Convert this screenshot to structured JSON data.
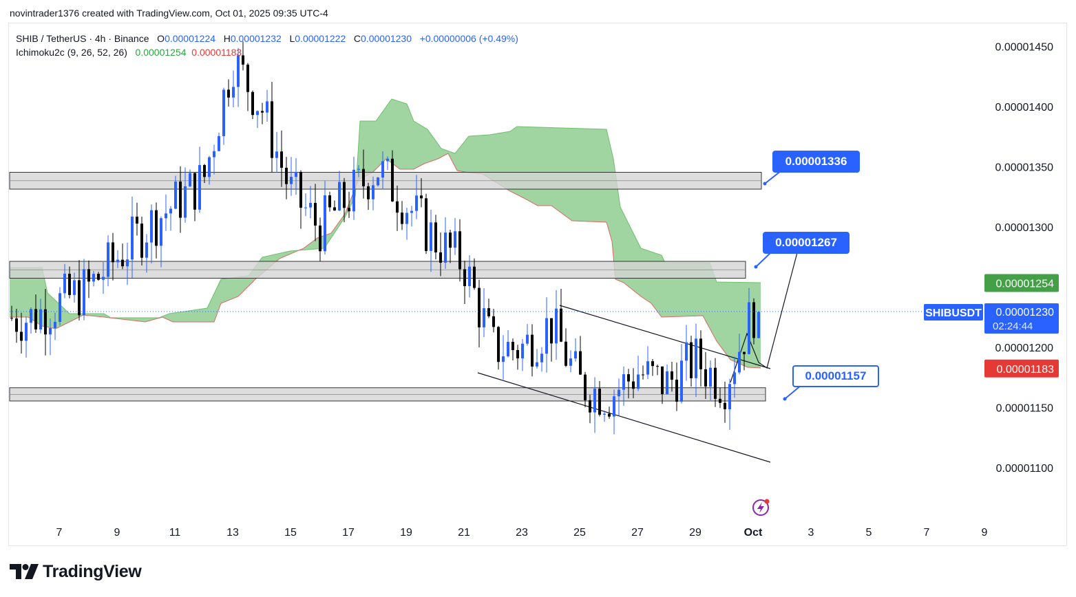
{
  "header": {
    "credit": "novintrader1376 created with TradingView.com, Oct 01, 2025 09:35 UTC-4"
  },
  "legend": {
    "symbol": "SHIB / TetherUS · 4h · Binance",
    "o_label": "O",
    "o_value": "0.00001224",
    "h_label": "H",
    "h_value": "0.00001232",
    "l_label": "L",
    "l_value": "0.00001222",
    "c_label": "C",
    "c_value": "0.00001230",
    "change": "+0.00000006 (+0.49%)",
    "indicator_name": "Ichimoku2c (9, 26, 52, 26)",
    "indicator_value_1": "0.00001254",
    "indicator_value_2": "0.00001183"
  },
  "price_axis": {
    "ticks": [
      "0.00001450",
      "0.00001400",
      "0.00001350",
      "0.00001300",
      "0.00001200",
      "0.00001150",
      "0.00001100"
    ],
    "tag_cloud_top": "0.00001254",
    "tag_cloud_bottom": "0.00001183",
    "last_price": "0.00001230",
    "countdown": "02:24:44",
    "symbol_tag": "SHIBUSDT"
  },
  "time_axis": {
    "ticks": [
      "7",
      "9",
      "11",
      "13",
      "15",
      "17",
      "19",
      "21",
      "23",
      "25",
      "27",
      "29",
      "Oct",
      "3",
      "5",
      "7",
      "9"
    ]
  },
  "callouts": {
    "target_high": "0.00001336",
    "target_mid": "0.00001267",
    "support": "0.00001157"
  },
  "footer": {
    "brand": "TradingView"
  },
  "colors": {
    "up_candle": "#2962ff",
    "down_candle": "#000000",
    "cloud_fill": "#8fcc8f",
    "cloud_edge": "#e06666",
    "zone_fill": "#d4d4d4",
    "callout_blue": "#2962ff",
    "tag_green": "#43a047",
    "tag_red": "#e53935"
  },
  "chart_data": {
    "type": "candlestick",
    "title": "SHIB / TetherUS · 4h · Binance",
    "x_axis": {
      "ticks": [
        "7",
        "9",
        "11",
        "13",
        "15",
        "17",
        "19",
        "21",
        "23",
        "25",
        "27",
        "29",
        "Oct",
        "3",
        "5",
        "7",
        "9"
      ]
    },
    "y_axis": {
      "min": 1.06e-05,
      "max": 1.47e-05,
      "scale": "linear"
    },
    "daily_closes": [
      {
        "day": "Sep 6",
        "close": 1.225e-05
      },
      {
        "day": "Sep 8",
        "close": 1.25e-05
      },
      {
        "day": "Sep 10",
        "close": 1.3e-05
      },
      {
        "day": "Sep 12",
        "close": 1.34e-05
      },
      {
        "day": "Sep 13",
        "close": 1.44e-05
      },
      {
        "day": "Sep 14",
        "close": 1.4e-05
      },
      {
        "day": "Sep 15",
        "close": 1.33e-05
      },
      {
        "day": "Sep 16",
        "close": 1.3e-05
      },
      {
        "day": "Sep 18",
        "close": 1.35e-05
      },
      {
        "day": "Sep 19",
        "close": 1.32e-05
      },
      {
        "day": "Sep 20",
        "close": 1.29e-05
      },
      {
        "day": "Sep 21",
        "close": 1.27e-05
      },
      {
        "day": "Sep 22",
        "close": 1.2e-05
      },
      {
        "day": "Sep 23",
        "close": 1.2e-05
      },
      {
        "day": "Sep 24",
        "close": 1.22e-05
      },
      {
        "day": "Sep 25",
        "close": 1.17e-05
      },
      {
        "day": "Sep 26",
        "close": 1.16e-05
      },
      {
        "day": "Sep 27",
        "close": 1.18e-05
      },
      {
        "day": "Sep 28",
        "close": 1.17e-05
      },
      {
        "day": "Sep 29",
        "close": 1.19e-05
      },
      {
        "day": "Sep 30",
        "close": 1.17e-05
      },
      {
        "day": "Oct 1",
        "close": 1.23e-05
      }
    ],
    "horizontal_zones": [
      {
        "from": 1.332e-05,
        "to": 1.346e-05
      },
      {
        "from": 1.258e-05,
        "to": 1.272e-05
      },
      {
        "from": 1.156e-05,
        "to": 1.167e-05
      }
    ],
    "ichimoku_cloud": {
      "span_a_last": 1.254e-05,
      "span_b_last": 1.183e-05
    },
    "last_close": 1.23e-05,
    "projected_path": [
      1.23e-05,
      1.183e-05,
      1.267e-05
    ]
  }
}
